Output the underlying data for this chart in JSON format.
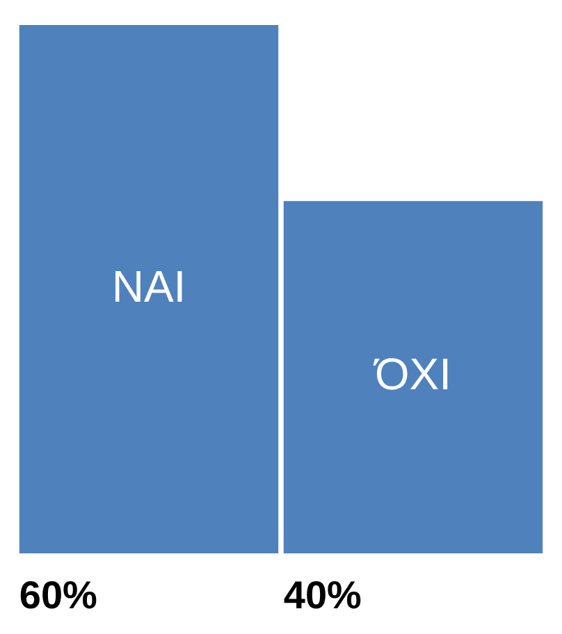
{
  "chart_data": {
    "type": "bar",
    "categories": [
      "ΝΑΙ",
      "ΌΧΙ"
    ],
    "values": [
      60,
      40
    ],
    "value_labels": [
      "60%",
      "40%"
    ],
    "color": "#4f81bd",
    "legend": false
  }
}
